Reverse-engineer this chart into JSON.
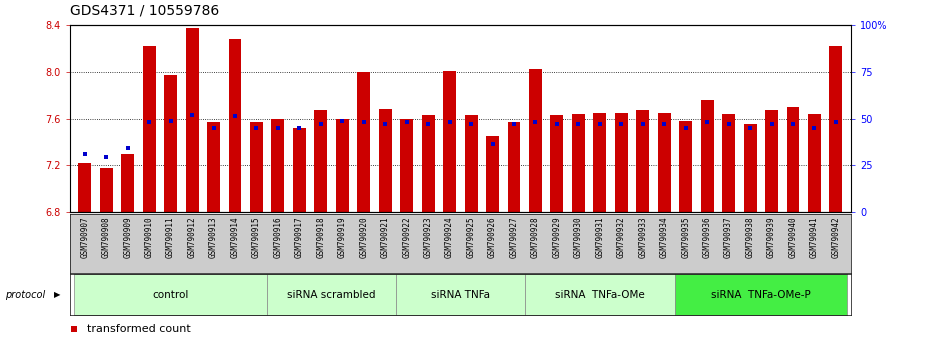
{
  "title": "GDS4371 / 10559786",
  "samples": [
    "GSM790907",
    "GSM790908",
    "GSM790909",
    "GSM790910",
    "GSM790911",
    "GSM790912",
    "GSM790913",
    "GSM790914",
    "GSM790915",
    "GSM790916",
    "GSM790917",
    "GSM790918",
    "GSM790919",
    "GSM790920",
    "GSM790921",
    "GSM790922",
    "GSM790923",
    "GSM790924",
    "GSM790925",
    "GSM790926",
    "GSM790927",
    "GSM790928",
    "GSM790929",
    "GSM790930",
    "GSM790931",
    "GSM790932",
    "GSM790933",
    "GSM790934",
    "GSM790935",
    "GSM790936",
    "GSM790937",
    "GSM790938",
    "GSM790939",
    "GSM790940",
    "GSM790941",
    "GSM790942"
  ],
  "bar_values": [
    7.22,
    7.18,
    7.3,
    8.22,
    7.97,
    8.37,
    7.57,
    8.28,
    7.57,
    7.6,
    7.52,
    7.67,
    7.6,
    8.0,
    7.68,
    7.6,
    7.63,
    8.01,
    7.63,
    7.45,
    7.57,
    8.02,
    7.63,
    7.64,
    7.65,
    7.65,
    7.67,
    7.65,
    7.58,
    7.76,
    7.64,
    7.55,
    7.67,
    7.7,
    7.64,
    8.22
  ],
  "percentile_values": [
    7.3,
    7.27,
    7.35,
    7.57,
    7.58,
    7.63,
    7.52,
    7.62,
    7.52,
    7.52,
    7.52,
    7.55,
    7.58,
    7.57,
    7.55,
    7.57,
    7.55,
    7.57,
    7.55,
    7.38,
    7.55,
    7.57,
    7.55,
    7.55,
    7.55,
    7.55,
    7.55,
    7.55,
    7.52,
    7.57,
    7.55,
    7.52,
    7.55,
    7.55,
    7.52,
    7.57
  ],
  "groups": [
    {
      "label": "control",
      "start": 0,
      "end": 9,
      "color": "#ccffcc",
      "bright": false
    },
    {
      "label": "siRNA scrambled",
      "start": 9,
      "end": 15,
      "color": "#ccffcc",
      "bright": false
    },
    {
      "label": "siRNA TNFa",
      "start": 15,
      "end": 21,
      "color": "#ccffcc",
      "bright": false
    },
    {
      "label": "siRNA  TNFa-OMe",
      "start": 21,
      "end": 28,
      "color": "#ccffcc",
      "bright": false
    },
    {
      "label": "siRNA  TNFa-OMe-P",
      "start": 28,
      "end": 36,
      "color": "#44ee44",
      "bright": true
    }
  ],
  "y_min": 6.8,
  "y_max": 8.4,
  "y_ticks": [
    6.8,
    7.2,
    7.6,
    8.0,
    8.4
  ],
  "bar_color": "#cc0000",
  "dot_color": "#0000cc",
  "right_y_ticks": [
    0,
    25,
    50,
    75,
    100
  ],
  "right_y_labels": [
    "0",
    "25",
    "50",
    "75",
    "100%"
  ],
  "title_fontsize": 10,
  "tick_fontsize": 7,
  "legend_fontsize": 8,
  "group_label_fontsize": 7.5,
  "bar_width": 0.6
}
